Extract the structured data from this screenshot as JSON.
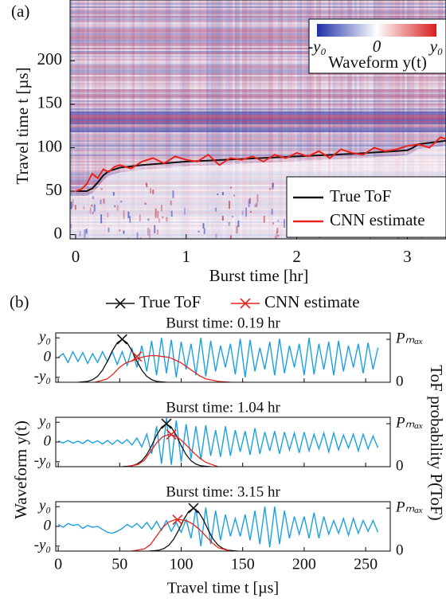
{
  "chart_data": [
    {
      "type": "line",
      "panel_label": "(a)",
      "xlabel": "Burst time [hr]",
      "ylabel": "Travel time t [µs]",
      "xlim": [
        -0.05,
        3.35
      ],
      "ylim": [
        -5,
        270
      ],
      "xticks": [
        0,
        1,
        2,
        3
      ],
      "yticks": [
        0,
        50,
        100,
        150,
        200
      ],
      "colorbar": {
        "labels": [
          {
            "value": -1,
            "label": "-y₀"
          },
          0,
          {
            "value": 1,
            "label": "y₀"
          }
        ],
        "title": "Waveform y(t)",
        "colors": [
          "#1f2fa8",
          "#ffffff",
          "#d81e1e"
        ]
      },
      "legend": "lower right",
      "series": [
        {
          "name": "True ToF",
          "color": "#111111",
          "x": [
            0,
            0.1,
            0.15,
            0.2,
            0.25,
            0.3,
            0.4,
            0.6,
            0.8,
            1.0,
            1.5,
            2.0,
            2.5,
            2.9,
            3.0,
            3.05,
            3.1,
            3.35
          ],
          "values": [
            50,
            50,
            53,
            60,
            68,
            73,
            77,
            80,
            82,
            84,
            87,
            90,
            93,
            96,
            97,
            100,
            104,
            108
          ]
        },
        {
          "name": "CNN estimate",
          "color": "#e8221c",
          "x": [
            0,
            0.05,
            0.1,
            0.15,
            0.2,
            0.25,
            0.3,
            0.35,
            0.4,
            0.5,
            0.6,
            0.7,
            0.8,
            0.9,
            1.0,
            1.1,
            1.2,
            1.3,
            1.4,
            1.5,
            1.6,
            1.7,
            1.8,
            1.9,
            2.0,
            2.1,
            2.2,
            2.3,
            2.4,
            2.5,
            2.6,
            2.7,
            2.8,
            2.9,
            3.0,
            3.1,
            3.2,
            3.3,
            3.35
          ],
          "values": [
            50,
            52,
            58,
            70,
            65,
            75,
            72,
            78,
            80,
            76,
            84,
            88,
            82,
            90,
            86,
            84,
            92,
            80,
            88,
            86,
            90,
            84,
            92,
            88,
            94,
            90,
            96,
            88,
            98,
            94,
            92,
            100,
            96,
            98,
            102,
            104,
            100,
            112,
            110
          ]
        }
      ]
    },
    {
      "type": "line",
      "panel_label": "(b)",
      "xlabel": "Travel time t [µs]",
      "ylabel": "Waveform y(t)",
      "y2label": "ToF probability P(ToF)",
      "xlim": [
        -2,
        270
      ],
      "xticks": [
        0,
        50,
        100,
        150,
        200,
        250
      ],
      "ylim": [
        -1.25,
        1.25
      ],
      "yticks": [
        {
          "value": -1,
          "label": "-y₀"
        },
        0,
        {
          "value": 1,
          "label": "y₀"
        }
      ],
      "y2lim": [
        0,
        1.15
      ],
      "y2ticks": [
        0,
        {
          "value": 1,
          "label": "Pₘₐₓ"
        }
      ],
      "waveform_color": "#1ba1e2",
      "legend": [
        {
          "name": "True ToF",
          "color": "#111111"
        },
        {
          "name": "CNN estimate",
          "color": "#e8221c"
        }
      ],
      "x": [
        0,
        4,
        8,
        12,
        16,
        20,
        24,
        28,
        32,
        36,
        40,
        44,
        48,
        52,
        56,
        60,
        64,
        68,
        72,
        76,
        80,
        84,
        88,
        92,
        96,
        100,
        104,
        108,
        112,
        116,
        120,
        124,
        128,
        132,
        136,
        140,
        144,
        148,
        152,
        156,
        160,
        164,
        168,
        172,
        176,
        180,
        184,
        188,
        192,
        196,
        200,
        204,
        208,
        212,
        216,
        220,
        224,
        228,
        232,
        236,
        240,
        244,
        248,
        252,
        256,
        260
      ],
      "subplots": [
        {
          "title": "Burst time: 0.19 hr",
          "waveform": [
            0,
            0.2,
            -0.25,
            0.3,
            -0.2,
            0.25,
            -0.3,
            0.2,
            -0.25,
            0.3,
            -0.2,
            0.3,
            -0.35,
            0.3,
            -0.4,
            0.45,
            -0.5,
            0.6,
            -0.7,
            0.85,
            -0.9,
            1.0,
            -0.8,
            0.9,
            -1.0,
            0.8,
            -0.6,
            0.7,
            -0.9,
            1.0,
            -0.95,
            0.85,
            -0.7,
            0.6,
            -0.5,
            0.7,
            -0.85,
            0.95,
            -1.0,
            0.9,
            -0.7,
            0.5,
            -0.6,
            0.8,
            -0.9,
            0.95,
            -0.8,
            0.6,
            -0.5,
            0.7,
            -0.9,
            1.0,
            -0.85,
            0.7,
            -0.6,
            0.8,
            -0.9,
            0.85,
            -0.7,
            0.6,
            -0.5,
            0.7,
            -0.8,
            0.75,
            -0.6,
            0.5
          ],
          "tof": {
            "x": [
              16,
              20,
              24,
              28,
              32,
              36,
              40,
              44,
              48,
              52,
              56,
              60,
              64,
              68,
              72,
              76,
              80,
              84,
              88
            ],
            "values": [
              0,
              0.01,
              0.02,
              0.06,
              0.14,
              0.28,
              0.49,
              0.73,
              0.92,
              1,
              0.92,
              0.73,
              0.49,
              0.28,
              0.14,
              0.06,
              0.02,
              0.01,
              0
            ],
            "marker": [
              52,
              1
            ]
          },
          "cnn": {
            "x": [
              30,
              40,
              45,
              50,
              55,
              60,
              65,
              70,
              75,
              80,
              85,
              90,
              95,
              100,
              105,
              110,
              115,
              120,
              130,
              140
            ],
            "values": [
              0,
              0.08,
              0.2,
              0.35,
              0.45,
              0.5,
              0.55,
              0.6,
              0.62,
              0.62,
              0.6,
              0.58,
              0.52,
              0.45,
              0.35,
              0.25,
              0.15,
              0.08,
              0.02,
              0
            ],
            "marker": [
              64,
              0.6
            ]
          }
        },
        {
          "title": "Burst time: 1.04 hr",
          "waveform": [
            0.05,
            -0.05,
            0.08,
            -0.06,
            0.04,
            -0.08,
            0.1,
            -0.05,
            0.06,
            -0.1,
            0.08,
            -0.12,
            0.1,
            -0.08,
            0.12,
            -0.15,
            0.2,
            -0.25,
            0.4,
            -0.6,
            0.8,
            -1.1,
            1.2,
            -1.15,
            1.1,
            -1.0,
            0.9,
            -0.85,
            0.8,
            -0.9,
            0.85,
            -0.7,
            0.6,
            -0.75,
            0.8,
            -0.7,
            0.6,
            -0.5,
            0.55,
            -0.65,
            0.7,
            -0.6,
            0.5,
            -0.45,
            0.55,
            -0.6,
            0.5,
            -0.4,
            0.45,
            -0.55,
            0.5,
            -0.45,
            0.4,
            -0.35,
            0.45,
            -0.5,
            0.45,
            -0.4,
            0.35,
            -0.3,
            0.4,
            -0.45,
            0.4,
            -0.35,
            0.3,
            -0.3
          ],
          "tof": {
            "x": [
              52,
              56,
              60,
              64,
              68,
              72,
              76,
              80,
              84,
              88,
              92,
              96,
              100,
              104,
              108,
              112,
              116,
              120,
              124
            ],
            "values": [
              0,
              0.01,
              0.02,
              0.06,
              0.14,
              0.28,
              0.49,
              0.73,
              0.92,
              1,
              0.92,
              0.73,
              0.49,
              0.28,
              0.14,
              0.06,
              0.02,
              0.01,
              0
            ],
            "marker": [
              88,
              1
            ]
          },
          "cnn": {
            "x": [
              55,
              65,
              70,
              75,
              80,
              85,
              90,
              95,
              100,
              105,
              110,
              115,
              120,
              130
            ],
            "values": [
              0,
              0.05,
              0.15,
              0.35,
              0.55,
              0.7,
              0.75,
              0.72,
              0.62,
              0.48,
              0.33,
              0.2,
              0.1,
              0
            ],
            "marker": [
              92,
              0.75
            ]
          }
        },
        {
          "title": "Burst time: 3.15 hr",
          "waveform": [
            0.1,
            -0.05,
            0.15,
            0.05,
            0.1,
            -0.1,
            0.05,
            -0.05,
            0.0,
            -0.15,
            -0.3,
            -0.35,
            -0.25,
            -0.1,
            0.1,
            -0.05,
            0.15,
            -0.1,
            0.2,
            -0.15,
            0.25,
            -0.2,
            0.3,
            -0.25,
            0.2,
            -0.3,
            0.35,
            -0.6,
            0.9,
            -1.0,
            0.95,
            -0.9,
            0.8,
            -0.7,
            0.6,
            -0.5,
            0.4,
            -0.5,
            0.6,
            -0.7,
            0.8,
            -0.9,
            1.0,
            -1.05,
            1.0,
            -0.9,
            0.8,
            -0.6,
            0.5,
            -0.4,
            0.5,
            -0.6,
            0.7,
            -0.6,
            0.5,
            -0.4,
            0.3,
            -0.35,
            0.4,
            -0.45,
            0.4,
            -0.35,
            0.3,
            -0.25,
            0.3,
            -0.3
          ],
          "tof": {
            "x": [
              74,
              78,
              82,
              86,
              90,
              94,
              98,
              102,
              106,
              110,
              114,
              118,
              122,
              126,
              130,
              134,
              138,
              142,
              146
            ],
            "values": [
              0,
              0.01,
              0.02,
              0.06,
              0.14,
              0.28,
              0.49,
              0.73,
              0.92,
              1,
              0.92,
              0.73,
              0.49,
              0.28,
              0.14,
              0.06,
              0.02,
              0.01,
              0
            ],
            "marker": [
              110,
              1
            ]
          },
          "cnn": {
            "x": [
              60,
              70,
              75,
              80,
              85,
              90,
              95,
              100,
              105,
              110,
              115,
              120,
              125,
              130,
              140
            ],
            "values": [
              0,
              0.05,
              0.15,
              0.35,
              0.55,
              0.68,
              0.73,
              0.73,
              0.7,
              0.62,
              0.5,
              0.35,
              0.2,
              0.08,
              0
            ],
            "marker": [
              97,
              0.73
            ]
          }
        }
      ]
    }
  ]
}
